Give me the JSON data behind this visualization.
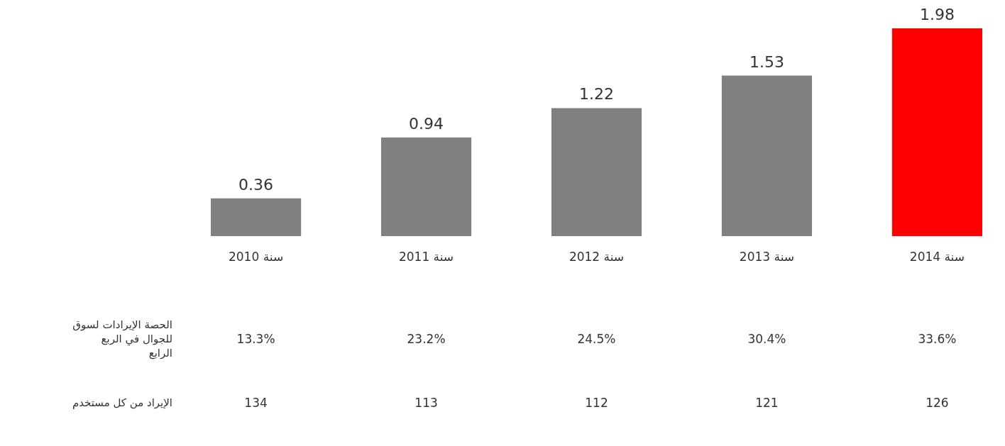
{
  "chart_data": {
    "type": "bar",
    "categories": [
      "سنة 2010",
      "سنة 2011",
      "سنة 2012",
      "سنة 2013",
      "سنة 2014"
    ],
    "values": [
      0.36,
      0.94,
      1.22,
      1.53,
      1.98
    ],
    "colors": [
      "#808080",
      "#808080",
      "#808080",
      "#808080",
      "#ff0000"
    ],
    "data_labels": true,
    "annotations": [
      "الحصة الإيرادات لسوق للجوال في الربع الرابع",
      "13.3%",
      "23.2%",
      "24.5%",
      "30.4%",
      "33.6%",
      "الإيراد من كل مستخدم",
      "134",
      "113",
      "112",
      "121",
      "126"
    ]
  }
}
